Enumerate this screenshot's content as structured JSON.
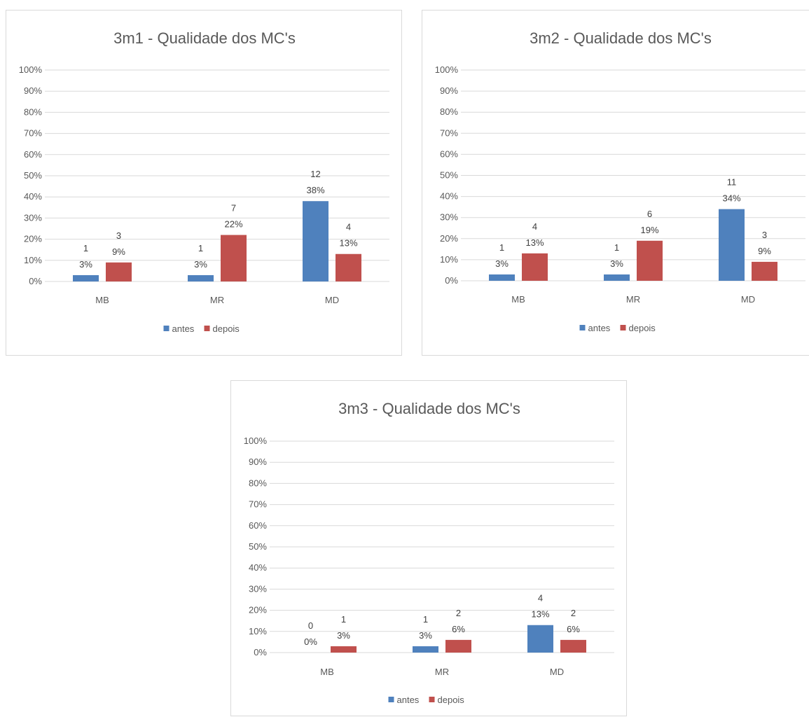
{
  "legend": {
    "series": [
      "antes",
      "depois"
    ]
  },
  "colors": {
    "antes": "#4f81bd",
    "depois": "#c0504d",
    "grid": "#d9d9d9",
    "text": "#595959"
  },
  "chart_data": [
    {
      "type": "bar",
      "title": "3m1 - Qualidade dos MC's",
      "categories": [
        "MB",
        "MR",
        "MD"
      ],
      "ylim": [
        0,
        100
      ],
      "yticks": [
        "0%",
        "10%",
        "20%",
        "30%",
        "40%",
        "50%",
        "60%",
        "70%",
        "80%",
        "90%",
        "100%"
      ],
      "grid": true,
      "legend_position": "bottom",
      "series": [
        {
          "name": "antes",
          "values": [
            3,
            3,
            38
          ],
          "counts": [
            "1",
            "1",
            "12"
          ],
          "labels": [
            "3%",
            "3%",
            "38%"
          ]
        },
        {
          "name": "depois",
          "values": [
            9,
            22,
            13
          ],
          "counts": [
            "3",
            "7",
            "4"
          ],
          "labels": [
            "9%",
            "22%",
            "13%"
          ]
        }
      ]
    },
    {
      "type": "bar",
      "title": "3m2 - Qualidade dos MC's",
      "categories": [
        "MB",
        "MR",
        "MD"
      ],
      "ylim": [
        0,
        100
      ],
      "yticks": [
        "0%",
        "10%",
        "20%",
        "30%",
        "40%",
        "50%",
        "60%",
        "70%",
        "80%",
        "90%",
        "100%"
      ],
      "grid": true,
      "legend_position": "bottom",
      "series": [
        {
          "name": "antes",
          "values": [
            3,
            3,
            34
          ],
          "counts": [
            "1",
            "1",
            "11"
          ],
          "labels": [
            "3%",
            "3%",
            "34%"
          ]
        },
        {
          "name": "depois",
          "values": [
            13,
            19,
            9
          ],
          "counts": [
            "4",
            "6",
            "3"
          ],
          "labels": [
            "13%",
            "19%",
            "9%"
          ]
        }
      ]
    },
    {
      "type": "bar",
      "title": "3m3 - Qualidade dos MC's",
      "categories": [
        "MB",
        "MR",
        "MD"
      ],
      "ylim": [
        0,
        100
      ],
      "yticks": [
        "0%",
        "10%",
        "20%",
        "30%",
        "40%",
        "50%",
        "60%",
        "70%",
        "80%",
        "90%",
        "100%"
      ],
      "grid": true,
      "legend_position": "bottom",
      "series": [
        {
          "name": "antes",
          "values": [
            0,
            3,
            13
          ],
          "counts": [
            "0",
            "1",
            "4"
          ],
          "labels": [
            "0%",
            "3%",
            "13%"
          ]
        },
        {
          "name": "depois",
          "values": [
            3,
            6,
            6
          ],
          "counts": [
            "1",
            "2",
            "2"
          ],
          "labels": [
            "3%",
            "6%",
            "6%"
          ]
        }
      ]
    }
  ]
}
